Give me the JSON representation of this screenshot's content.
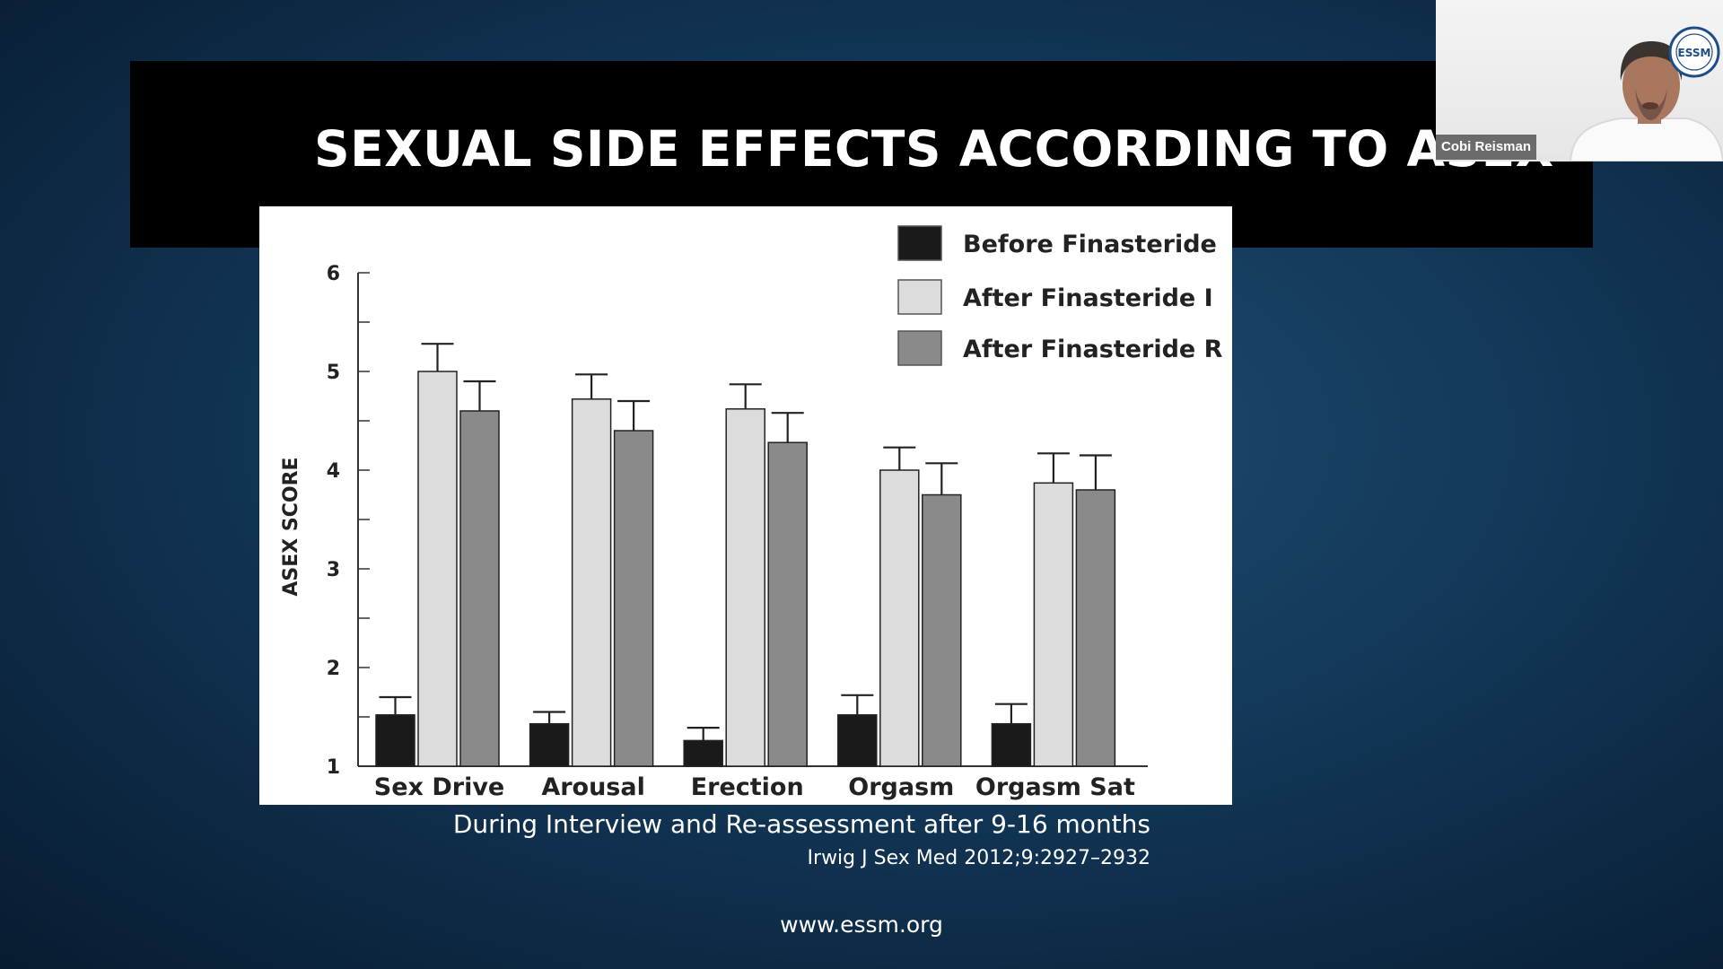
{
  "slide": {
    "title": "SEXUAL SIDE EFFECTS ACCORDING TO ASEX",
    "subtitle": "During Interview and Re-assessment after 9-16 months",
    "citation": "Irwig J Sex Med 2012;9:2927–2932",
    "footer_url": "www.essm.org"
  },
  "video": {
    "participant_name": "Cobi Reisman",
    "logo_text": "ESSM"
  },
  "colors": {
    "background": "#143a5c",
    "title_band": "#000000",
    "before": "#1a1a1a",
    "after_i": "#dcdcdc",
    "after_r": "#8a8a8a"
  },
  "chart_data": {
    "type": "bar",
    "ylabel": "ASEX SCORE",
    "xlabel": "",
    "ylim": [
      1,
      6
    ],
    "yticks": [
      1,
      2,
      3,
      4,
      5,
      6
    ],
    "categories": [
      "Sex Drive",
      "Arousal",
      "Erection",
      "Orgasm",
      "Orgasm Sat"
    ],
    "series": [
      {
        "name": "Before Finasteride",
        "values": [
          1.52,
          1.43,
          1.26,
          1.52,
          1.43
        ],
        "error": [
          0.18,
          0.12,
          0.13,
          0.2,
          0.2
        ]
      },
      {
        "name": "After Finasteride I",
        "values": [
          5.0,
          4.72,
          4.62,
          4.0,
          3.87
        ],
        "error": [
          0.28,
          0.25,
          0.25,
          0.23,
          0.3
        ]
      },
      {
        "name": "After Finasteride R",
        "values": [
          4.6,
          4.4,
          4.28,
          3.75,
          3.8
        ],
        "error": [
          0.3,
          0.3,
          0.3,
          0.32,
          0.35
        ]
      }
    ],
    "legend_position": "top-right",
    "grid": false
  }
}
